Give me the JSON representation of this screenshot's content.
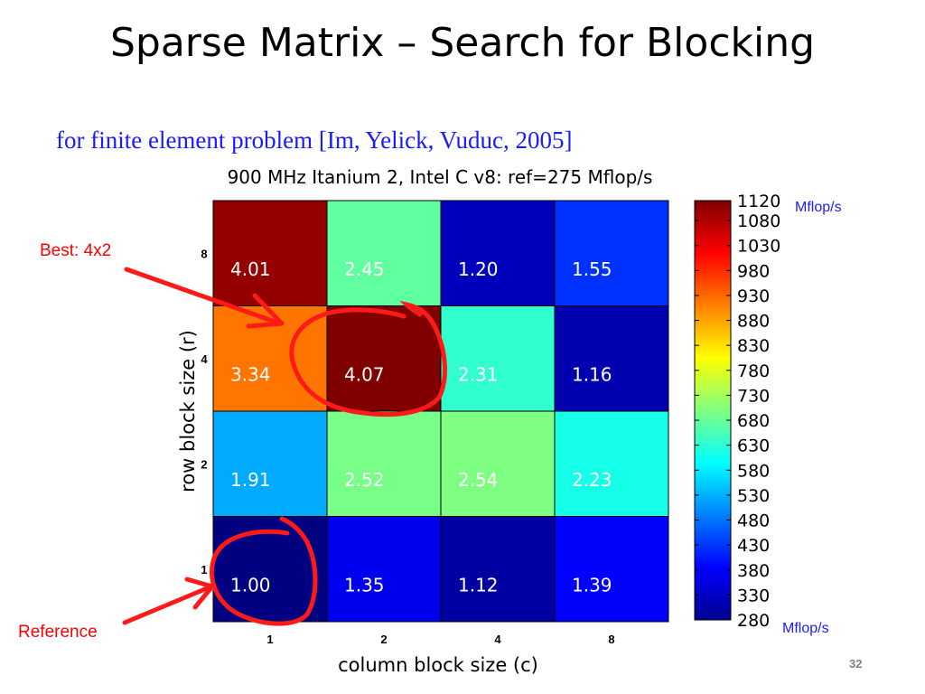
{
  "slide": {
    "title": "Sparse Matrix – Search for Blocking",
    "subtitle": "for finite element problem [Im, Yelick, Vuduc, 2005]",
    "page_number": "32"
  },
  "annotations": {
    "best": "Best: 4x2",
    "reference": "Reference"
  },
  "colors": {
    "annotation": "#ff0000",
    "subtitle": "#1a1aff"
  },
  "chart_data": {
    "type": "heatmap",
    "title": "900 MHz Itanium 2, Intel C v8: ref=275 Mflop/s",
    "xlabel": "column block size (c)",
    "ylabel": "row block size (r)",
    "x_categories": [
      "1",
      "2",
      "4",
      "8"
    ],
    "y_categories": [
      "8",
      "4",
      "2",
      "1"
    ],
    "values": [
      [
        4.01,
        2.45,
        1.2,
        1.55
      ],
      [
        3.34,
        4.07,
        2.31,
        1.16
      ],
      [
        1.91,
        2.52,
        2.54,
        2.23
      ],
      [
        1.0,
        1.35,
        1.12,
        1.39
      ]
    ],
    "value_labels": [
      [
        "4.01",
        "2.45",
        "1.20",
        "1.55"
      ],
      [
        "3.34",
        "4.07",
        "2.31",
        "1.16"
      ],
      [
        "1.91",
        "2.52",
        "2.54",
        "2.23"
      ],
      [
        "1.00",
        "1.35",
        "1.12",
        "1.39"
      ]
    ],
    "colorbar": {
      "min": 280,
      "max": 1120,
      "ticks": [
        "1120",
        "1080",
        "1030",
        "980",
        "930",
        "880",
        "830",
        "780",
        "730",
        "680",
        "630",
        "580",
        "530",
        "480",
        "430",
        "380",
        "330",
        "280"
      ],
      "unit_top": "Mflop/s",
      "unit_bottom": "Mflop/s",
      "colormap": "jet"
    },
    "reference_mflops": 275
  }
}
